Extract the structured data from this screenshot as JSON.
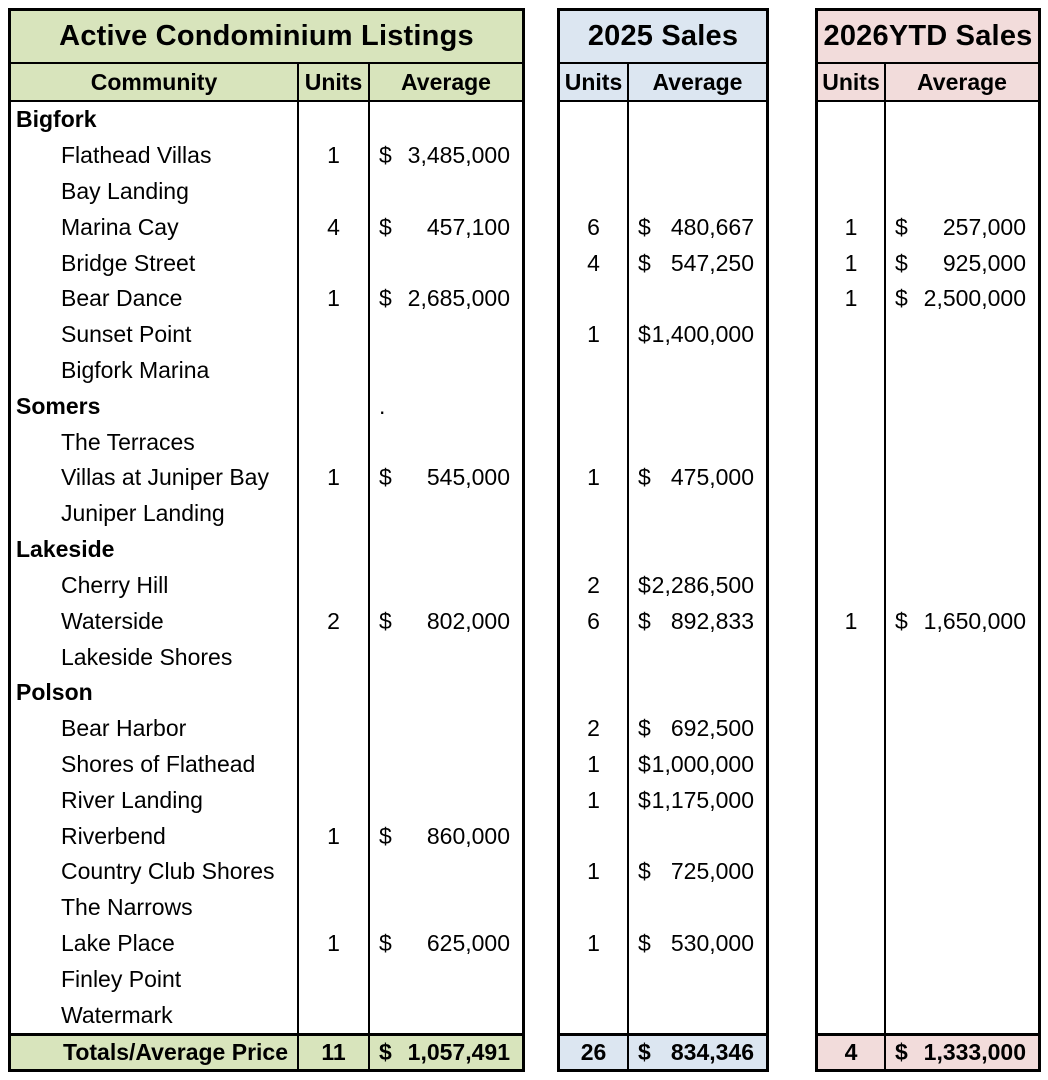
{
  "currency_symbol": "$",
  "tables": {
    "listings": {
      "title": "Active Condominium Listings",
      "header_bg": "#d8e4bc",
      "columns": {
        "community": "Community",
        "units": "Units",
        "average": "Average"
      }
    },
    "sales_2025": {
      "title": "2025 Sales",
      "header_bg": "#dce6f1",
      "columns": {
        "units": "Units",
        "average": "Average"
      }
    },
    "sales_2026ytd": {
      "title": "2026YTD Sales",
      "header_bg": "#f2dcdb",
      "columns": {
        "units": "Units",
        "average": "Average"
      }
    }
  },
  "rows": [
    {
      "community": "Bigfork",
      "group": true,
      "listings": [
        "",
        ""
      ],
      "sales_2025": [
        "",
        ""
      ],
      "sales_2026ytd": [
        "",
        ""
      ]
    },
    {
      "community": "Flathead Villas",
      "group": false,
      "listings": [
        "1",
        "3,485,000"
      ],
      "sales_2025": [
        "",
        ""
      ],
      "sales_2026ytd": [
        "",
        ""
      ]
    },
    {
      "community": "Bay Landing",
      "group": false,
      "listings": [
        "",
        ""
      ],
      "sales_2025": [
        "",
        ""
      ],
      "sales_2026ytd": [
        "",
        ""
      ]
    },
    {
      "community": "Marina Cay",
      "group": false,
      "listings": [
        "4",
        "457,100"
      ],
      "sales_2025": [
        "6",
        "480,667"
      ],
      "sales_2026ytd": [
        "1",
        "257,000"
      ]
    },
    {
      "community": "Bridge Street",
      "group": false,
      "listings": [
        "",
        ""
      ],
      "sales_2025": [
        "4",
        "547,250"
      ],
      "sales_2026ytd": [
        "1",
        "925,000"
      ]
    },
    {
      "community": "Bear Dance",
      "group": false,
      "listings": [
        "1",
        "2,685,000"
      ],
      "sales_2025": [
        "",
        ""
      ],
      "sales_2026ytd": [
        "1",
        "2,500,000"
      ]
    },
    {
      "community": "Sunset Point",
      "group": false,
      "listings": [
        "",
        ""
      ],
      "sales_2025": [
        "1",
        "1,400,000"
      ],
      "sales_2026ytd": [
        "",
        ""
      ]
    },
    {
      "community": "Bigfork Marina",
      "group": false,
      "listings": [
        "",
        ""
      ],
      "sales_2025": [
        "",
        ""
      ],
      "sales_2026ytd": [
        "",
        ""
      ]
    },
    {
      "community": "Somers",
      "group": true,
      "listings": [
        "",
        "."
      ],
      "sales_2025": [
        "",
        ""
      ],
      "sales_2026ytd": [
        "",
        ""
      ]
    },
    {
      "community": "The Terraces",
      "group": false,
      "listings": [
        "",
        ""
      ],
      "sales_2025": [
        "",
        ""
      ],
      "sales_2026ytd": [
        "",
        ""
      ]
    },
    {
      "community": "Villas at Juniper Bay",
      "group": false,
      "listings": [
        "1",
        "545,000"
      ],
      "sales_2025": [
        "1",
        "475,000"
      ],
      "sales_2026ytd": [
        "",
        ""
      ]
    },
    {
      "community": "Juniper Landing",
      "group": false,
      "listings": [
        "",
        ""
      ],
      "sales_2025": [
        "",
        ""
      ],
      "sales_2026ytd": [
        "",
        ""
      ]
    },
    {
      "community": "Lakeside",
      "group": true,
      "listings": [
        "",
        ""
      ],
      "sales_2025": [
        "",
        ""
      ],
      "sales_2026ytd": [
        "",
        ""
      ]
    },
    {
      "community": "Cherry Hill",
      "group": false,
      "listings": [
        "",
        ""
      ],
      "sales_2025": [
        "2",
        "2,286,500"
      ],
      "sales_2026ytd": [
        "",
        ""
      ]
    },
    {
      "community": "Waterside",
      "group": false,
      "listings": [
        "2",
        "802,000"
      ],
      "sales_2025": [
        "6",
        "892,833"
      ],
      "sales_2026ytd": [
        "1",
        "1,650,000"
      ]
    },
    {
      "community": "Lakeside Shores",
      "group": false,
      "listings": [
        "",
        ""
      ],
      "sales_2025": [
        "",
        ""
      ],
      "sales_2026ytd": [
        "",
        ""
      ]
    },
    {
      "community": "Polson",
      "group": true,
      "listings": [
        "",
        ""
      ],
      "sales_2025": [
        "",
        ""
      ],
      "sales_2026ytd": [
        "",
        ""
      ]
    },
    {
      "community": "Bear Harbor",
      "group": false,
      "listings": [
        "",
        ""
      ],
      "sales_2025": [
        "2",
        "692,500"
      ],
      "sales_2026ytd": [
        "",
        ""
      ]
    },
    {
      "community": "Shores of Flathead",
      "group": false,
      "listings": [
        "",
        ""
      ],
      "sales_2025": [
        "1",
        "1,000,000"
      ],
      "sales_2026ytd": [
        "",
        ""
      ]
    },
    {
      "community": "River Landing",
      "group": false,
      "listings": [
        "",
        ""
      ],
      "sales_2025": [
        "1",
        "1,175,000"
      ],
      "sales_2026ytd": [
        "",
        ""
      ]
    },
    {
      "community": "Riverbend",
      "group": false,
      "listings": [
        "1",
        "860,000"
      ],
      "sales_2025": [
        "",
        ""
      ],
      "sales_2026ytd": [
        "",
        ""
      ]
    },
    {
      "community": "Country Club Shores",
      "group": false,
      "listings": [
        "",
        ""
      ],
      "sales_2025": [
        "1",
        "725,000"
      ],
      "sales_2026ytd": [
        "",
        ""
      ]
    },
    {
      "community": "The Narrows",
      "group": false,
      "listings": [
        "",
        ""
      ],
      "sales_2025": [
        "",
        ""
      ],
      "sales_2026ytd": [
        "",
        ""
      ]
    },
    {
      "community": "Lake Place",
      "group": false,
      "listings": [
        "1",
        "625,000"
      ],
      "sales_2025": [
        "1",
        "530,000"
      ],
      "sales_2026ytd": [
        "",
        ""
      ]
    },
    {
      "community": "Finley Point",
      "group": false,
      "listings": [
        "",
        ""
      ],
      "sales_2025": [
        "",
        ""
      ],
      "sales_2026ytd": [
        "",
        ""
      ]
    },
    {
      "community": "Watermark",
      "group": false,
      "listings": [
        "",
        ""
      ],
      "sales_2025": [
        "",
        ""
      ],
      "sales_2026ytd": [
        "",
        ""
      ]
    }
  ],
  "totals": {
    "label": "Totals/Average Price",
    "listings": [
      "11",
      "1,057,491"
    ],
    "sales_2025": [
      "26",
      "834,346"
    ],
    "sales_2026ytd": [
      "4",
      "1,333,000"
    ]
  }
}
